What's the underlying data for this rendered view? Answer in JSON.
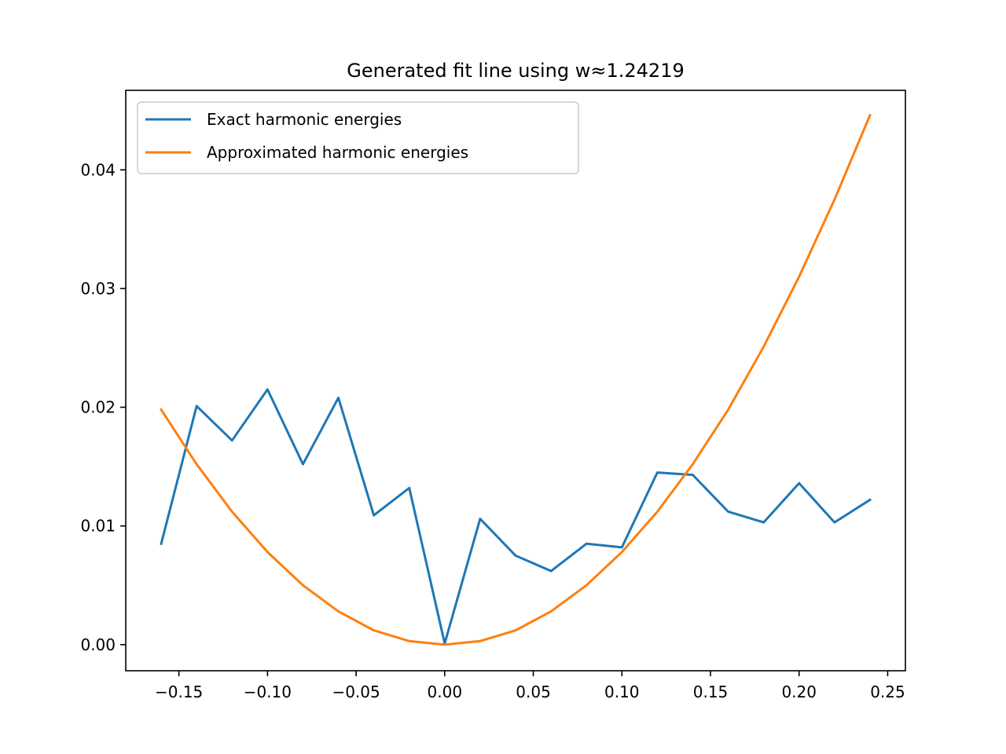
{
  "chart_data": {
    "type": "line",
    "title": "Generated fit line using w≈1.24219",
    "xlabel": "",
    "ylabel": "",
    "xlim": [
      -0.18,
      0.26
    ],
    "ylim": [
      -0.0022,
      0.0467
    ],
    "x_ticks": [
      -0.15,
      -0.1,
      -0.05,
      0.0,
      0.05,
      0.1,
      0.15,
      0.2,
      0.25
    ],
    "x_tick_labels": [
      "−0.15",
      "−0.10",
      "−0.05",
      "0.00",
      "0.05",
      "0.10",
      "0.15",
      "0.20",
      "0.25"
    ],
    "y_ticks": [
      0.0,
      0.01,
      0.02,
      0.03,
      0.04
    ],
    "y_tick_labels": [
      "0.00",
      "0.01",
      "0.02",
      "0.03",
      "0.04"
    ],
    "grid": false,
    "legend_position": "upper-left",
    "x": [
      -0.16,
      -0.14,
      -0.12,
      -0.1,
      -0.08,
      -0.06,
      -0.04,
      -0.02,
      0.0,
      0.02,
      0.04,
      0.06,
      0.08,
      0.1,
      0.12,
      0.14,
      0.16,
      0.18,
      0.2,
      0.22,
      0.24
    ],
    "series": [
      {
        "name": "Exact harmonic energies",
        "color": "#1f77b4",
        "values": [
          0.0085,
          0.0201,
          0.0172,
          0.0215,
          0.0152,
          0.0208,
          0.0109,
          0.0132,
          0.0001,
          0.0106,
          0.0075,
          0.0062,
          0.0085,
          0.0082,
          0.0145,
          0.0143,
          0.0112,
          0.0103,
          0.0136,
          0.0103,
          0.0122
        ]
      },
      {
        "name": "Approximated harmonic energies",
        "color": "#ff7f0e",
        "values": [
          0.0198,
          0.0152,
          0.0112,
          0.0078,
          0.005,
          0.0028,
          0.0012,
          0.0003,
          0.0,
          0.0003,
          0.0012,
          0.0028,
          0.005,
          0.0078,
          0.0112,
          0.0152,
          0.0198,
          0.0251,
          0.031,
          0.0375,
          0.0446
        ]
      }
    ]
  }
}
